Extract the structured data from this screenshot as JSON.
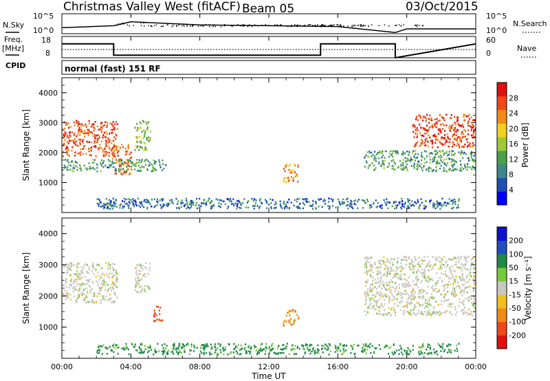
{
  "header": {
    "radar": "Christmas Valley West (fitACF)",
    "beam": "Beam 05",
    "date": "03/Oct/2015"
  },
  "noise_panel": {
    "left_label": "N.Sky",
    "right_label": "N.Search",
    "left_ticks": [
      "10^5",
      "10^0"
    ],
    "right_ticks": [
      "10^5",
      "10^0"
    ]
  },
  "freq_panel": {
    "left_label_1": "Freq.",
    "left_label_2": "[MHz]",
    "right_label": "Nave",
    "left_ticks": [
      "18",
      "8"
    ],
    "right_ticks": [
      "60",
      "0"
    ]
  },
  "cpid": {
    "label": "CPID",
    "value": "normal (fast) 151 RF"
  },
  "power_panel": {
    "ylabel": "Slant Range [km]",
    "colorbar_label": "Power [dB]",
    "yticks": [
      "1000",
      "2000",
      "3000",
      "4000"
    ],
    "cb_ticks": [
      "28",
      "24",
      "20",
      "16",
      "12",
      "8",
      "4"
    ]
  },
  "velocity_panel": {
    "ylabel": "Slant Range [km]",
    "colorbar_label": "Velocity [m s⁻¹]",
    "yticks": [
      "1000",
      "2000",
      "3000",
      "4000"
    ],
    "cb_ticks": [
      "200",
      "100",
      "50",
      "15",
      "-15",
      "-50",
      "-100",
      "-200"
    ]
  },
  "xaxis": {
    "label": "Time UT",
    "ticks": [
      "00:00",
      "04:00",
      "08:00",
      "12:00",
      "16:00",
      "20:00",
      "00:00"
    ]
  },
  "colors": {
    "power_scale": [
      "#0000ff",
      "#1f4fb0",
      "#3a8a8a",
      "#4aa04a",
      "#a0c838",
      "#f0d020",
      "#f08a18",
      "#f04818",
      "#e01010"
    ],
    "velocity_scale": [
      "#1010d0",
      "#2050c0",
      "#1e8a4a",
      "#78c83c",
      "#c8c8c0",
      "#f0c020",
      "#f08a18",
      "#f04818",
      "#e01010"
    ]
  },
  "chart_data": [
    {
      "type": "line",
      "title": "N.Sky / N.Search",
      "x": [
        "00:00",
        "03:00",
        "04:00",
        "08:00",
        "12:00",
        "16:00",
        "19:20",
        "20:00",
        "24:00"
      ],
      "series": [
        {
          "name": "N.Sky",
          "values": [
            1.5,
            2.0,
            3.0,
            2.2,
            2.0,
            1.8,
            0.3,
            1.2,
            1.2
          ]
        }
      ],
      "ylim": [
        0,
        5
      ]
    },
    {
      "type": "line",
      "title": "Freq. [MHz]",
      "x": [
        "00:00",
        "03:00",
        "03:00",
        "15:00",
        "15:00",
        "19:20",
        "19:20",
        "24:00"
      ],
      "series": [
        {
          "name": "Freq.",
          "values": [
            14.5,
            14.5,
            9.2,
            9.2,
            14.5,
            14.5,
            8,
            14.5
          ]
        },
        {
          "name": "Nave",
          "values": [
            25,
            25,
            25,
            25,
            25,
            25,
            25,
            25
          ]
        }
      ],
      "ylim": [
        8,
        18
      ]
    },
    {
      "type": "heatmap",
      "title": "Power [dB]",
      "xlabel": "Time UT",
      "ylabel": "Slant Range [km]",
      "xlim_hours": [
        0,
        24
      ],
      "ylim": [
        0,
        4500
      ],
      "colorbar": [
        4,
        8,
        12,
        16,
        20,
        24,
        28
      ],
      "regions": [
        {
          "t0": 0.0,
          "t1": 3.2,
          "r0": 1900,
          "r1": 3100,
          "power": 26
        },
        {
          "t0": 2.9,
          "t1": 4.0,
          "r0": 1300,
          "r1": 2300,
          "power": 24
        },
        {
          "t0": 4.2,
          "t1": 5.1,
          "r0": 2100,
          "r1": 3100,
          "power": 14
        },
        {
          "t0": 0.0,
          "t1": 6.0,
          "r0": 1400,
          "r1": 1800,
          "power": 10
        },
        {
          "t0": 12.8,
          "t1": 13.7,
          "r0": 1050,
          "r1": 1650,
          "power": 22
        },
        {
          "t0": 17.5,
          "t1": 24.0,
          "r0": 1400,
          "r1": 2100,
          "power": 10
        },
        {
          "t0": 20.3,
          "t1": 24.0,
          "r0": 2200,
          "r1": 3300,
          "power": 27
        },
        {
          "t0": 2.0,
          "t1": 23.0,
          "r0": 150,
          "r1": 500,
          "power": 6
        }
      ]
    },
    {
      "type": "heatmap",
      "title": "Velocity [m s⁻¹]",
      "xlabel": "Time UT",
      "ylabel": "Slant Range [km]",
      "xlim_hours": [
        0,
        24
      ],
      "ylim": [
        0,
        4500
      ],
      "colorbar": [
        -200,
        -100,
        -50,
        -15,
        15,
        50,
        100,
        200
      ],
      "regions": [
        {
          "t0": 0.0,
          "t1": 3.2,
          "r0": 1800,
          "r1": 3100,
          "velocity": 0
        },
        {
          "t0": 4.2,
          "t1": 5.1,
          "r0": 2100,
          "r1": 3100,
          "velocity": 0
        },
        {
          "t0": 5.2,
          "t1": 5.8,
          "r0": 1200,
          "r1": 1700,
          "velocity": -120
        },
        {
          "t0": 12.8,
          "t1": 13.7,
          "r0": 1050,
          "r1": 1650,
          "velocity": -60
        },
        {
          "t0": 17.5,
          "t1": 24.0,
          "r0": 1400,
          "r1": 3300,
          "velocity": 0
        },
        {
          "t0": 2.0,
          "t1": 23.0,
          "r0": 150,
          "r1": 500,
          "velocity": 40
        }
      ]
    }
  ]
}
